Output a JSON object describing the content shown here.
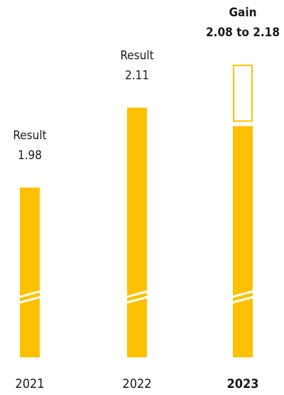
{
  "chart_data": {
    "type": "bar",
    "categories": [
      "2021",
      "2022",
      "2023"
    ],
    "values": [
      1.98,
      2.11,
      2.08
    ],
    "annotations": [
      {
        "title": "Result",
        "value": "1.98"
      },
      {
        "title": "Result",
        "value": "2.11"
      },
      {
        "title": "Gain",
        "value": "2.08 to 2.18"
      }
    ],
    "range": {
      "category": "2023",
      "low": 2.08,
      "high": 2.18
    },
    "axis_break": true,
    "highlighted_category": "2023",
    "colors": {
      "bar": "#FBC100",
      "break": "#ffffff",
      "text": "#1a1a1a"
    }
  }
}
